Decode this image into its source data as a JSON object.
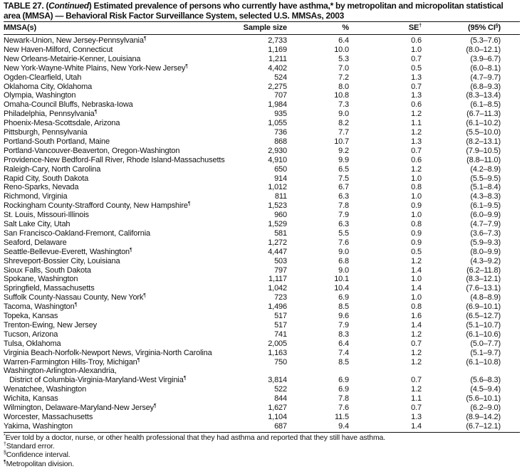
{
  "title": {
    "prefix": "TABLE 27. (",
    "continued": "Continued",
    "text": ") Estimated prevalence of persons who currently have asthma,* by metropolitan and micropolitan statistical area (MMSA) — Behavioral Risk Factor Surveillance System, selected U.S. MMSAs, 2003"
  },
  "headers": {
    "mmsa": "MMSA(s)",
    "sample_size": "Sample size",
    "percent": "%",
    "se": "SE",
    "se_mark": "†",
    "ci": "(95% CI",
    "ci_mark": "§",
    "ci_close": ")"
  },
  "rows": [
    {
      "name": "Newark-Union, New Jersey-Pennsylvania",
      "mark": "¶",
      "n": "2,733",
      "p": "6.4",
      "se": "0.6",
      "ci": "(5.3–7.6)"
    },
    {
      "name": "New Haven-Milford, Connecticut",
      "n": "1,169",
      "p": "10.0",
      "se": "1.0",
      "ci": "(8.0–12.1)"
    },
    {
      "name": "New Orleans-Metairie-Kenner, Louisiana",
      "n": "1,211",
      "p": "5.3",
      "se": "0.7",
      "ci": "(3.9–6.7)"
    },
    {
      "name": "New York-Wayne-White Plains, New York-New Jersey",
      "mark": "¶",
      "n": "4,402",
      "p": "7.0",
      "se": "0.5",
      "ci": "(6.0–8.1)"
    },
    {
      "name": "Ogden-Clearfield, Utah",
      "n": "524",
      "p": "7.2",
      "se": "1.3",
      "ci": "(4.7–9.7)"
    },
    {
      "name": "Oklahoma City, Oklahoma",
      "n": "2,275",
      "p": "8.0",
      "se": "0.7",
      "ci": "(6.8–9.3)"
    },
    {
      "name": "Olympia, Washington",
      "n": "707",
      "p": "10.8",
      "se": "1.3",
      "ci": "(8.3–13.4)"
    },
    {
      "name": "Omaha-Council Bluffs, Nebraska-Iowa",
      "n": "1,984",
      "p": "7.3",
      "se": "0.6",
      "ci": "(6.1–8.5)"
    },
    {
      "name": "Philadelphia, Pennsylvania",
      "mark": "¶",
      "n": "935",
      "p": "9.0",
      "se": "1.2",
      "ci": "(6.7–11.3)"
    },
    {
      "name": "Phoenix-Mesa-Scottsdale, Arizona",
      "n": "1,055",
      "p": "8.2",
      "se": "1.1",
      "ci": "(6.1–10.2)"
    },
    {
      "name": "Pittsburgh, Pennsylvania",
      "n": "736",
      "p": "7.7",
      "se": "1.2",
      "ci": "(5.5–10.0)"
    },
    {
      "name": "Portland-South Portland, Maine",
      "n": "868",
      "p": "10.7",
      "se": "1.3",
      "ci": "(8.2–13.1)"
    },
    {
      "name": "Portland-Vancouver-Beaverton, Oregon-Washington",
      "n": "2,930",
      "p": "9.2",
      "se": "0.7",
      "ci": "(7.9–10.5)"
    },
    {
      "name": "Providence-New Bedford-Fall River, Rhode Island-Massachusetts",
      "n": "4,910",
      "p": "9.9",
      "se": "0.6",
      "ci": "(8.8–11.0)"
    },
    {
      "name": "Raleigh-Cary, North Carolina",
      "n": "650",
      "p": "6.5",
      "se": "1.2",
      "ci": "(4.2–8.9)"
    },
    {
      "name": "Rapid City, South Dakota",
      "n": "914",
      "p": "7.5",
      "se": "1.0",
      "ci": "(5.5–9.5)"
    },
    {
      "name": "Reno-Sparks, Nevada",
      "n": "1,012",
      "p": "6.7",
      "se": "0.8",
      "ci": "(5.1–8.4)"
    },
    {
      "name": "Richmond, Virginia",
      "n": "811",
      "p": "6.3",
      "se": "1.0",
      "ci": "(4.3–8.3)"
    },
    {
      "name": "Rockingham County-Strafford County, New Hampshire",
      "mark": "¶",
      "n": "1,523",
      "p": "7.8",
      "se": "0.9",
      "ci": "(6.1–9.5)"
    },
    {
      "name": "St. Louis, Missouri-Illinois",
      "n": "960",
      "p": "7.9",
      "se": "1.0",
      "ci": "(6.0–9.9)"
    },
    {
      "name": "Salt Lake City, Utah",
      "n": "1,529",
      "p": "6.3",
      "se": "0.8",
      "ci": "(4.7–7.9)"
    },
    {
      "name": "San Francisco-Oakland-Fremont, California",
      "n": "581",
      "p": "5.5",
      "se": "0.9",
      "ci": "(3.6–7.3)"
    },
    {
      "name": "Seaford, Delaware",
      "n": "1,272",
      "p": "7.6",
      "se": "0.9",
      "ci": "(5.9–9.3)"
    },
    {
      "name": "Seattle-Bellevue-Everett, Washington",
      "mark": "¶",
      "n": "4,447",
      "p": "9.0",
      "se": "0.5",
      "ci": "(8.0–9.9)"
    },
    {
      "name": "Shreveport-Bossier City, Louisiana",
      "n": "503",
      "p": "6.8",
      "se": "1.2",
      "ci": "(4.3–9.2)"
    },
    {
      "name": "Sioux Falls, South Dakota",
      "n": "797",
      "p": "9.0",
      "se": "1.4",
      "ci": "(6.2–11.8)"
    },
    {
      "name": "Spokane, Washington",
      "n": "1,117",
      "p": "10.1",
      "se": "1.0",
      "ci": "(8.3–12.1)"
    },
    {
      "name": "Springfield, Massachusetts",
      "n": "1,042",
      "p": "10.4",
      "se": "1.4",
      "ci": "(7.6–13.1)"
    },
    {
      "name": "Suffolk County-Nassau County, New York",
      "mark": "¶",
      "n": "723",
      "p": "6.9",
      "se": "1.0",
      "ci": "(4.8–8.9)"
    },
    {
      "name": "Tacoma, Washington",
      "mark": "¶",
      "n": "1,496",
      "p": "8.5",
      "se": "0.8",
      "ci": "(6.9–10.1)"
    },
    {
      "name": "Topeka, Kansas",
      "n": "517",
      "p": "9.6",
      "se": "1.6",
      "ci": "(6.5–12.7)"
    },
    {
      "name": "Trenton-Ewing, New Jersey",
      "n": "517",
      "p": "7.9",
      "se": "1.4",
      "ci": "(5.1–10.7)"
    },
    {
      "name": "Tucson, Arizona",
      "n": "741",
      "p": "8.3",
      "se": "1.2",
      "ci": "(6.1–10.6)"
    },
    {
      "name": "Tulsa, Oklahoma",
      "n": "2,005",
      "p": "6.4",
      "se": "0.7",
      "ci": "(5.0–7.7)"
    },
    {
      "name": "Virginia Beach-Norfolk-Newport News, Virginia-North Carolina",
      "n": "1,163",
      "p": "7.4",
      "se": "1.2",
      "ci": "(5.1–9.7)"
    },
    {
      "name": "Warren-Farmington Hills-Troy, Michigan",
      "mark": "¶",
      "n": "750",
      "p": "8.5",
      "se": "1.2",
      "ci": "(6.1–10.8)"
    },
    {
      "name": "Washington-Arlington-Alexandria,",
      "name2": "District of Columbia-Virginia-Maryland-West Virginia",
      "mark": "¶",
      "n": "3,814",
      "p": "6.9",
      "se": "0.7",
      "ci": "(5.6–8.3)"
    },
    {
      "name": "Wenatchee, Washington",
      "n": "522",
      "p": "6.9",
      "se": "1.2",
      "ci": "(4.5–9.4)"
    },
    {
      "name": "Wichita, Kansas",
      "n": "844",
      "p": "7.8",
      "se": "1.1",
      "ci": "(5.6–10.1)"
    },
    {
      "name": "Wilmington, Delaware-Maryland-New Jersey",
      "mark": "¶",
      "n": "1,627",
      "p": "7.6",
      "se": "0.7",
      "ci": "(6.2–9.0)"
    },
    {
      "name": "Worcester, Massachusetts",
      "n": "1,104",
      "p": "11.5",
      "se": "1.3",
      "ci": "(8.9–14.2)"
    },
    {
      "name": "Yakima, Washington",
      "n": "687",
      "p": "9.4",
      "se": "1.4",
      "ci": "(6.7–12.1)"
    }
  ],
  "footnotes": [
    {
      "mark": "*",
      "text": "Ever told by a doctor, nurse, or other health professional that they had asthma and reported that they still have asthma."
    },
    {
      "mark": "†",
      "text": "Standard error."
    },
    {
      "mark": "§",
      "text": "Confidence interval."
    },
    {
      "mark": "¶",
      "text": "Metropolitan division."
    }
  ]
}
